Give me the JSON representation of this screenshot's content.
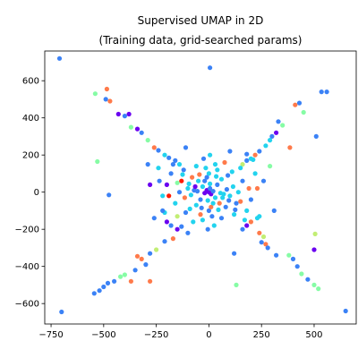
{
  "chart_data": {
    "type": "scatter",
    "title_line1": "Supervised UMAP in 2D",
    "title_line2": "(Training data, grid-searched params)",
    "xlabel": "",
    "ylabel": "",
    "xlim": [
      -780,
      700
    ],
    "ylim": [
      -710,
      760
    ],
    "xticks": [
      -750,
      -500,
      -250,
      0,
      250,
      500
    ],
    "xtick_labels": [
      "−750",
      "−500",
      "−250",
      "0",
      "250",
      "500"
    ],
    "yticks": [
      -600,
      -400,
      -200,
      0,
      200,
      400,
      600
    ],
    "ytick_labels": [
      "−600",
      "−400",
      "−200",
      "0",
      "200",
      "400",
      "600"
    ],
    "grid": false,
    "palette": {
      "purple": "#6a00f0",
      "blue": "#3b82f6",
      "cyan": "#22d3ee",
      "green": "#86fca5",
      "yellow": "#c2ee74",
      "orange": "#ff7a4a",
      "red": "#ff1a00"
    },
    "points": [
      [
        -710,
        720,
        "blue"
      ],
      [
        5,
        670,
        "blue"
      ],
      [
        535,
        540,
        "blue"
      ],
      [
        -540,
        530,
        "green"
      ],
      [
        -485,
        555,
        "orange"
      ],
      [
        -490,
        500,
        "blue"
      ],
      [
        -470,
        490,
        "orange"
      ],
      [
        -430,
        420,
        "purple"
      ],
      [
        -400,
        410,
        "blue"
      ],
      [
        -380,
        420,
        "purple"
      ],
      [
        -370,
        350,
        "green"
      ],
      [
        -340,
        340,
        "purple"
      ],
      [
        -320,
        320,
        "blue"
      ],
      [
        -290,
        280,
        "green"
      ],
      [
        -260,
        240,
        "orange"
      ],
      [
        -240,
        225,
        "blue"
      ],
      [
        -210,
        200,
        "cyan"
      ],
      [
        -190,
        185,
        "blue"
      ],
      [
        -160,
        170,
        "blue"
      ],
      [
        -140,
        150,
        "cyan"
      ],
      [
        -530,
        165,
        "green"
      ],
      [
        -475,
        -15,
        "blue"
      ],
      [
        -290,
        150,
        "blue"
      ],
      [
        -280,
        40,
        "purple"
      ],
      [
        -235,
        60,
        "blue"
      ],
      [
        -220,
        -20,
        "cyan"
      ],
      [
        -210,
        -110,
        "cyan"
      ],
      [
        -260,
        -140,
        "blue"
      ],
      [
        -200,
        -160,
        "purple"
      ],
      [
        -180,
        -180,
        "blue"
      ],
      [
        -150,
        -200,
        "purple"
      ],
      [
        -130,
        -185,
        "blue"
      ],
      [
        -170,
        -250,
        "orange"
      ],
      [
        -210,
        -265,
        "blue"
      ],
      [
        -250,
        -310,
        "yellow"
      ],
      [
        -280,
        -330,
        "blue"
      ],
      [
        -320,
        -360,
        "orange"
      ],
      [
        -340,
        -345,
        "orange"
      ],
      [
        -280,
        -480,
        "orange"
      ],
      [
        -300,
        -390,
        "blue"
      ],
      [
        -350,
        -420,
        "blue"
      ],
      [
        -400,
        -445,
        "green"
      ],
      [
        -420,
        -455,
        "green"
      ],
      [
        -450,
        -480,
        "blue"
      ],
      [
        -480,
        -490,
        "blue"
      ],
      [
        -500,
        -510,
        "blue"
      ],
      [
        -520,
        -530,
        "blue"
      ],
      [
        -545,
        -545,
        "blue"
      ],
      [
        -700,
        -645,
        "blue"
      ],
      [
        -370,
        -480,
        "orange"
      ],
      [
        430,
        480,
        "blue"
      ],
      [
        410,
        470,
        "orange"
      ],
      [
        450,
        430,
        "green"
      ],
      [
        510,
        300,
        "blue"
      ],
      [
        385,
        240,
        "orange"
      ],
      [
        330,
        380,
        "blue"
      ],
      [
        350,
        360,
        "green"
      ],
      [
        320,
        320,
        "purple"
      ],
      [
        300,
        300,
        "blue"
      ],
      [
        290,
        280,
        "cyan"
      ],
      [
        270,
        250,
        "cyan"
      ],
      [
        240,
        220,
        "blue"
      ],
      [
        220,
        200,
        "orange"
      ],
      [
        200,
        180,
        "cyan"
      ],
      [
        180,
        170,
        "blue"
      ],
      [
        160,
        150,
        "yellow"
      ],
      [
        180,
        205,
        "blue"
      ],
      [
        210,
        175,
        "cyan"
      ],
      [
        290,
        140,
        "green"
      ],
      [
        260,
        60,
        "blue"
      ],
      [
        230,
        20,
        "orange"
      ],
      [
        310,
        -100,
        "blue"
      ],
      [
        230,
        -140,
        "cyan"
      ],
      [
        200,
        -160,
        "orange"
      ],
      [
        180,
        -180,
        "purple"
      ],
      [
        160,
        -200,
        "blue"
      ],
      [
        240,
        -220,
        "orange"
      ],
      [
        260,
        -240,
        "yellow"
      ],
      [
        250,
        -270,
        "blue"
      ],
      [
        270,
        -280,
        "orange"
      ],
      [
        280,
        -300,
        "blue"
      ],
      [
        320,
        -340,
        "blue"
      ],
      [
        380,
        -340,
        "green"
      ],
      [
        400,
        -360,
        "blue"
      ],
      [
        420,
        -400,
        "blue"
      ],
      [
        440,
        -440,
        "green"
      ],
      [
        470,
        -470,
        "blue"
      ],
      [
        500,
        -500,
        "green"
      ],
      [
        520,
        -520,
        "green"
      ],
      [
        505,
        -225,
        "yellow"
      ],
      [
        500,
        -310,
        "purple"
      ],
      [
        130,
        -500,
        "green"
      ],
      [
        120,
        -330,
        "blue"
      ],
      [
        -110,
        240,
        "blue"
      ],
      [
        650,
        -640,
        "blue"
      ],
      [
        560,
        540,
        "blue"
      ],
      [
        0,
        0,
        "purple"
      ],
      [
        -10,
        10,
        "purple"
      ],
      [
        10,
        -10,
        "purple"
      ],
      [
        5,
        20,
        "blue"
      ],
      [
        -20,
        -5,
        "purple"
      ],
      [
        20,
        5,
        "blue"
      ],
      [
        -30,
        30,
        "cyan"
      ],
      [
        30,
        -30,
        "cyan"
      ],
      [
        -40,
        -40,
        "blue"
      ],
      [
        40,
        40,
        "blue"
      ],
      [
        -50,
        60,
        "cyan"
      ],
      [
        50,
        -60,
        "orange"
      ],
      [
        -60,
        -70,
        "cyan"
      ],
      [
        60,
        70,
        "cyan"
      ],
      [
        -70,
        10,
        "blue"
      ],
      [
        70,
        -10,
        "cyan"
      ],
      [
        -80,
        80,
        "orange"
      ],
      [
        80,
        -80,
        "blue"
      ],
      [
        -90,
        -90,
        "cyan"
      ],
      [
        90,
        90,
        "blue"
      ],
      [
        -100,
        20,
        "cyan"
      ],
      [
        100,
        -20,
        "cyan"
      ],
      [
        -110,
        -110,
        "blue"
      ],
      [
        110,
        110,
        "cyan"
      ],
      [
        -120,
        120,
        "blue"
      ],
      [
        120,
        -120,
        "cyan"
      ],
      [
        0,
        100,
        "cyan"
      ],
      [
        0,
        -100,
        "blue"
      ],
      [
        -15,
        130,
        "cyan"
      ],
      [
        15,
        -130,
        "blue"
      ],
      [
        -140,
        0,
        "blue"
      ],
      [
        140,
        0,
        "cyan"
      ],
      [
        -150,
        50,
        "green"
      ],
      [
        150,
        -50,
        "orange"
      ],
      [
        -60,
        140,
        "cyan"
      ],
      [
        60,
        -140,
        "blue"
      ],
      [
        -30,
        -150,
        "cyan"
      ],
      [
        30,
        150,
        "cyan"
      ],
      [
        -180,
        100,
        "blue"
      ],
      [
        180,
        -100,
        "cyan"
      ],
      [
        -200,
        40,
        "purple"
      ],
      [
        200,
        -40,
        "blue"
      ],
      [
        -75,
        -160,
        "cyan"
      ],
      [
        75,
        160,
        "orange"
      ],
      [
        -130,
        60,
        "red"
      ],
      [
        130,
        -60,
        "blue"
      ],
      [
        -20,
        60,
        "blue"
      ],
      [
        20,
        -60,
        "cyan"
      ],
      [
        -45,
        95,
        "orange"
      ],
      [
        45,
        -95,
        "cyan"
      ],
      [
        -95,
        45,
        "cyan"
      ],
      [
        95,
        -45,
        "blue"
      ],
      [
        -35,
        -85,
        "blue"
      ],
      [
        35,
        85,
        "cyan"
      ],
      [
        -160,
        -60,
        "cyan"
      ],
      [
        160,
        60,
        "blue"
      ],
      [
        -5,
        -45,
        "cyan"
      ],
      [
        5,
        45,
        "cyan"
      ],
      [
        -55,
        5,
        "blue"
      ],
      [
        55,
        -5,
        "cyan"
      ],
      [
        -115,
        -30,
        "orange"
      ],
      [
        115,
        30,
        "cyan"
      ],
      [
        -25,
        180,
        "blue"
      ],
      [
        25,
        -180,
        "cyan"
      ],
      [
        -170,
        150,
        "blue"
      ],
      [
        170,
        -150,
        "cyan"
      ],
      [
        -220,
        -100,
        "blue"
      ],
      [
        220,
        100,
        "cyan"
      ],
      [
        -100,
        -220,
        "blue"
      ],
      [
        100,
        220,
        "blue"
      ],
      [
        -240,
        130,
        "cyan"
      ],
      [
        240,
        -130,
        "cyan"
      ],
      [
        -190,
        -20,
        "red"
      ],
      [
        190,
        20,
        "orange"
      ],
      [
        -5,
        -200,
        "blue"
      ],
      [
        5,
        200,
        "cyan"
      ],
      [
        -65,
        30,
        "purple"
      ],
      [
        65,
        -30,
        "cyan"
      ],
      [
        -85,
        -15,
        "cyan"
      ],
      [
        85,
        15,
        "blue"
      ],
      [
        -150,
        -130,
        "yellow"
      ],
      [
        150,
        130,
        "cyan"
      ],
      [
        -10,
        80,
        "blue"
      ],
      [
        10,
        -80,
        "orange"
      ],
      [
        -125,
        95,
        "cyan"
      ],
      [
        125,
        -95,
        "blue"
      ],
      [
        -40,
        -120,
        "orange"
      ],
      [
        40,
        120,
        "cyan"
      ]
    ]
  }
}
